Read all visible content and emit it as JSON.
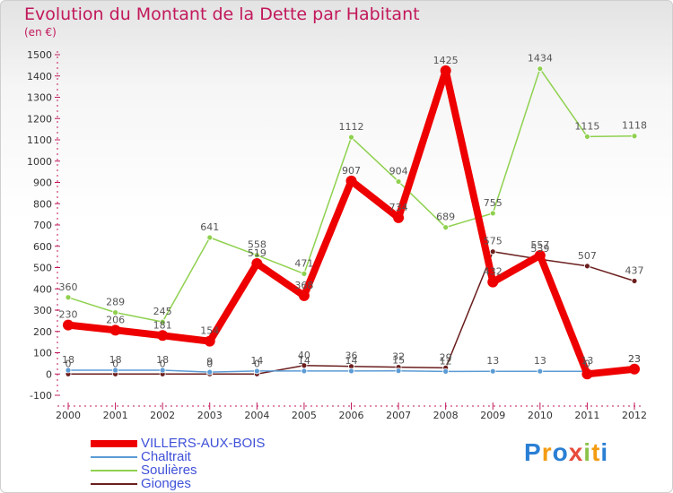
{
  "title": "Evolution du Montant de la Dette par Habitant",
  "unit_label": "(en €)",
  "logo": {
    "letters": [
      "P",
      "r",
      "o",
      "x",
      "i",
      "t",
      "i"
    ],
    "colors": [
      "#2a7fd4",
      "#f39c12",
      "#2a7fd4",
      "#e74c3c",
      "#8bc34a",
      "#f39c12",
      "#2a7fd4"
    ]
  },
  "chart_data": {
    "type": "line",
    "title": "Evolution du Montant de la Dette par Habitant",
    "ylabel": "(en €)",
    "xlabel": "",
    "x": [
      "2000",
      "2001",
      "2002",
      "2003",
      "2004",
      "2005",
      "2006",
      "2007",
      "2008",
      "2009",
      "2010",
      "2011",
      "2012"
    ],
    "ylim": [
      -100,
      1500
    ],
    "yticks": [
      -100,
      0,
      100,
      200,
      300,
      400,
      500,
      600,
      700,
      800,
      900,
      1000,
      1100,
      1200,
      1300,
      1400,
      1500
    ],
    "grid": false,
    "legend_position": "bottom-left",
    "series": [
      {
        "name": "VILLERS-AUX-BOIS",
        "color": "#ee0000",
        "values": [
          230,
          206,
          181,
          154,
          519,
          368,
          907,
          734,
          1425,
          432,
          557,
          0,
          23
        ]
      },
      {
        "name": "Chaltrait",
        "color": "#5b9bd5",
        "values": [
          18,
          18,
          18,
          9,
          14,
          14,
          14,
          15,
          12,
          13,
          13,
          13,
          23
        ]
      },
      {
        "name": "Soulières",
        "color": "#8fd14f",
        "values": [
          360,
          289,
          245,
          641,
          558,
          471,
          1112,
          904,
          689,
          755,
          1434,
          1115,
          1118
        ]
      },
      {
        "name": "Gionges",
        "color": "#6b1e1e",
        "values": [
          0,
          0,
          0,
          0,
          0,
          40,
          36,
          32,
          29,
          575,
          539,
          507,
          437
        ]
      }
    ],
    "labels": [
      {
        "series": 0,
        "text": [
          "230",
          "206",
          "181",
          "154",
          "519",
          "368",
          "907",
          "734",
          "1425",
          "432",
          "557",
          "0",
          "23"
        ]
      },
      {
        "series": 1,
        "text": [
          "18",
          "18",
          "18",
          "9",
          "14",
          "14",
          "14",
          "15",
          "12",
          "13",
          "13",
          "13",
          "23"
        ]
      },
      {
        "series": 2,
        "text": [
          "360",
          "289",
          "245",
          "641",
          "558",
          "471",
          "1112",
          "904",
          "689",
          "755",
          "1434",
          "1115",
          "1118"
        ]
      },
      {
        "series": 3,
        "text": [
          "0",
          "0",
          "0",
          "0",
          "0",
          "40",
          "36",
          "32",
          "29",
          "575",
          "539",
          "507",
          "437"
        ]
      }
    ]
  }
}
